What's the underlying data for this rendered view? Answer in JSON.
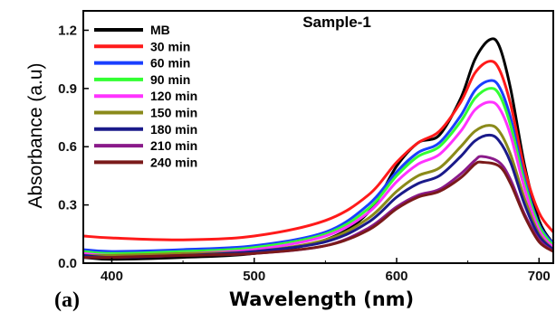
{
  "chart_data": {
    "type": "line",
    "title": "Sample-1",
    "panel_label": "(a)",
    "xlabel": "Wavelength (nm)",
    "ylabel": "Absorbance (a.u)",
    "xlim": [
      380,
      710
    ],
    "ylim": [
      0,
      1.3
    ],
    "xticks": [
      400,
      500,
      600,
      700
    ],
    "yticks": [
      0.0,
      0.3,
      0.6,
      0.9,
      1.2
    ],
    "ytick_labels": [
      "0.0",
      "0.3",
      "0.6",
      "0.9",
      "1.2"
    ],
    "legend_position": "top-left",
    "grid": false,
    "series": [
      {
        "name": "MB",
        "color": "#000000",
        "points": [
          [
            380,
            0.03
          ],
          [
            400,
            0.02
          ],
          [
            450,
            0.03
          ],
          [
            500,
            0.05
          ],
          [
            550,
            0.12
          ],
          [
            580,
            0.26
          ],
          [
            600,
            0.5
          ],
          [
            615,
            0.62
          ],
          [
            630,
            0.66
          ],
          [
            645,
            0.85
          ],
          [
            655,
            1.05
          ],
          [
            665,
            1.15
          ],
          [
            672,
            1.12
          ],
          [
            680,
            0.9
          ],
          [
            690,
            0.5
          ],
          [
            700,
            0.22
          ],
          [
            710,
            0.1
          ]
        ]
      },
      {
        "name": "30 min",
        "color": "#ff1a1a",
        "points": [
          [
            380,
            0.14
          ],
          [
            400,
            0.13
          ],
          [
            450,
            0.12
          ],
          [
            500,
            0.14
          ],
          [
            550,
            0.22
          ],
          [
            580,
            0.35
          ],
          [
            600,
            0.52
          ],
          [
            615,
            0.62
          ],
          [
            630,
            0.68
          ],
          [
            645,
            0.83
          ],
          [
            655,
            0.98
          ],
          [
            665,
            1.04
          ],
          [
            672,
            1.0
          ],
          [
            680,
            0.82
          ],
          [
            690,
            0.48
          ],
          [
            700,
            0.26
          ],
          [
            710,
            0.16
          ]
        ]
      },
      {
        "name": "60 min",
        "color": "#1a3fff",
        "points": [
          [
            380,
            0.07
          ],
          [
            400,
            0.06
          ],
          [
            450,
            0.07
          ],
          [
            500,
            0.09
          ],
          [
            550,
            0.16
          ],
          [
            580,
            0.3
          ],
          [
            600,
            0.47
          ],
          [
            615,
            0.57
          ],
          [
            630,
            0.62
          ],
          [
            645,
            0.76
          ],
          [
            655,
            0.89
          ],
          [
            665,
            0.94
          ],
          [
            672,
            0.91
          ],
          [
            680,
            0.75
          ],
          [
            690,
            0.43
          ],
          [
            700,
            0.2
          ],
          [
            710,
            0.1
          ]
        ]
      },
      {
        "name": "90 min",
        "color": "#33ff33",
        "points": [
          [
            380,
            0.06
          ],
          [
            400,
            0.05
          ],
          [
            450,
            0.06
          ],
          [
            500,
            0.08
          ],
          [
            550,
            0.15
          ],
          [
            580,
            0.28
          ],
          [
            600,
            0.45
          ],
          [
            615,
            0.55
          ],
          [
            630,
            0.6
          ],
          [
            645,
            0.73
          ],
          [
            655,
            0.85
          ],
          [
            665,
            0.9
          ],
          [
            672,
            0.87
          ],
          [
            680,
            0.71
          ],
          [
            690,
            0.41
          ],
          [
            700,
            0.19
          ],
          [
            710,
            0.09
          ]
        ]
      },
      {
        "name": "120 min",
        "color": "#ff33ff",
        "points": [
          [
            380,
            0.05
          ],
          [
            400,
            0.04
          ],
          [
            450,
            0.05
          ],
          [
            500,
            0.07
          ],
          [
            550,
            0.14
          ],
          [
            580,
            0.26
          ],
          [
            600,
            0.42
          ],
          [
            615,
            0.51
          ],
          [
            630,
            0.56
          ],
          [
            645,
            0.68
          ],
          [
            655,
            0.79
          ],
          [
            665,
            0.83
          ],
          [
            672,
            0.8
          ],
          [
            680,
            0.66
          ],
          [
            690,
            0.38
          ],
          [
            700,
            0.17
          ],
          [
            710,
            0.08
          ]
        ]
      },
      {
        "name": "150 min",
        "color": "#8a8a1a",
        "points": [
          [
            380,
            0.04
          ],
          [
            400,
            0.04
          ],
          [
            450,
            0.05
          ],
          [
            500,
            0.06
          ],
          [
            550,
            0.12
          ],
          [
            580,
            0.23
          ],
          [
            600,
            0.37
          ],
          [
            615,
            0.45
          ],
          [
            630,
            0.49
          ],
          [
            645,
            0.6
          ],
          [
            655,
            0.68
          ],
          [
            665,
            0.71
          ],
          [
            672,
            0.68
          ],
          [
            680,
            0.56
          ],
          [
            690,
            0.33
          ],
          [
            700,
            0.15
          ],
          [
            710,
            0.07
          ]
        ]
      },
      {
        "name": "180 min",
        "color": "#1a1a8a",
        "points": [
          [
            380,
            0.04
          ],
          [
            400,
            0.03
          ],
          [
            450,
            0.04
          ],
          [
            500,
            0.06
          ],
          [
            550,
            0.11
          ],
          [
            580,
            0.21
          ],
          [
            600,
            0.34
          ],
          [
            615,
            0.41
          ],
          [
            630,
            0.45
          ],
          [
            645,
            0.55
          ],
          [
            655,
            0.63
          ],
          [
            665,
            0.66
          ],
          [
            672,
            0.63
          ],
          [
            680,
            0.52
          ],
          [
            690,
            0.3
          ],
          [
            700,
            0.14
          ],
          [
            710,
            0.07
          ]
        ]
      },
      {
        "name": "210 min",
        "color": "#8a1a8a",
        "points": [
          [
            380,
            0.03
          ],
          [
            400,
            0.03
          ],
          [
            450,
            0.04
          ],
          [
            500,
            0.05
          ],
          [
            550,
            0.09
          ],
          [
            580,
            0.18
          ],
          [
            600,
            0.29
          ],
          [
            615,
            0.35
          ],
          [
            630,
            0.38
          ],
          [
            645,
            0.46
          ],
          [
            655,
            0.53
          ],
          [
            660,
            0.55
          ],
          [
            672,
            0.52
          ],
          [
            680,
            0.43
          ],
          [
            690,
            0.25
          ],
          [
            700,
            0.12
          ],
          [
            710,
            0.06
          ]
        ]
      },
      {
        "name": "240 min",
        "color": "#7a1a1a",
        "points": [
          [
            380,
            0.03
          ],
          [
            400,
            0.03
          ],
          [
            450,
            0.04
          ],
          [
            500,
            0.05
          ],
          [
            550,
            0.09
          ],
          [
            580,
            0.17
          ],
          [
            600,
            0.28
          ],
          [
            615,
            0.34
          ],
          [
            630,
            0.37
          ],
          [
            645,
            0.44
          ],
          [
            655,
            0.51
          ],
          [
            660,
            0.52
          ],
          [
            672,
            0.5
          ],
          [
            680,
            0.41
          ],
          [
            690,
            0.24
          ],
          [
            700,
            0.11
          ],
          [
            710,
            0.06
          ]
        ]
      }
    ]
  }
}
